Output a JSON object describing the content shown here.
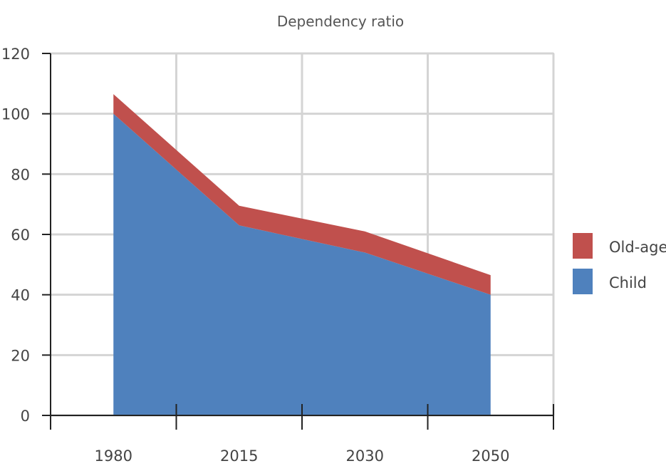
{
  "chart_data": {
    "type": "area",
    "stacked": true,
    "title": "Dependency ratio",
    "xlabel": "",
    "ylabel": "",
    "categories": [
      "1980",
      "2015",
      "2030",
      "2050"
    ],
    "ylim": [
      0,
      120
    ],
    "yticks": [
      "0",
      "20",
      "40",
      "60",
      "80",
      "100",
      "120"
    ],
    "grid": true,
    "legend_position": "right",
    "series": [
      {
        "name": "Child",
        "values": [
          100,
          63,
          54,
          40
        ],
        "color": "#4f81bd"
      },
      {
        "name": "Old-age",
        "values": [
          6.5,
          6.5,
          7,
          6.5
        ],
        "color": "#c0504d"
      }
    ],
    "legend": [
      {
        "name": "Old-age",
        "color": "#c0504d"
      },
      {
        "name": "Child",
        "color": "#4f81bd"
      }
    ]
  }
}
